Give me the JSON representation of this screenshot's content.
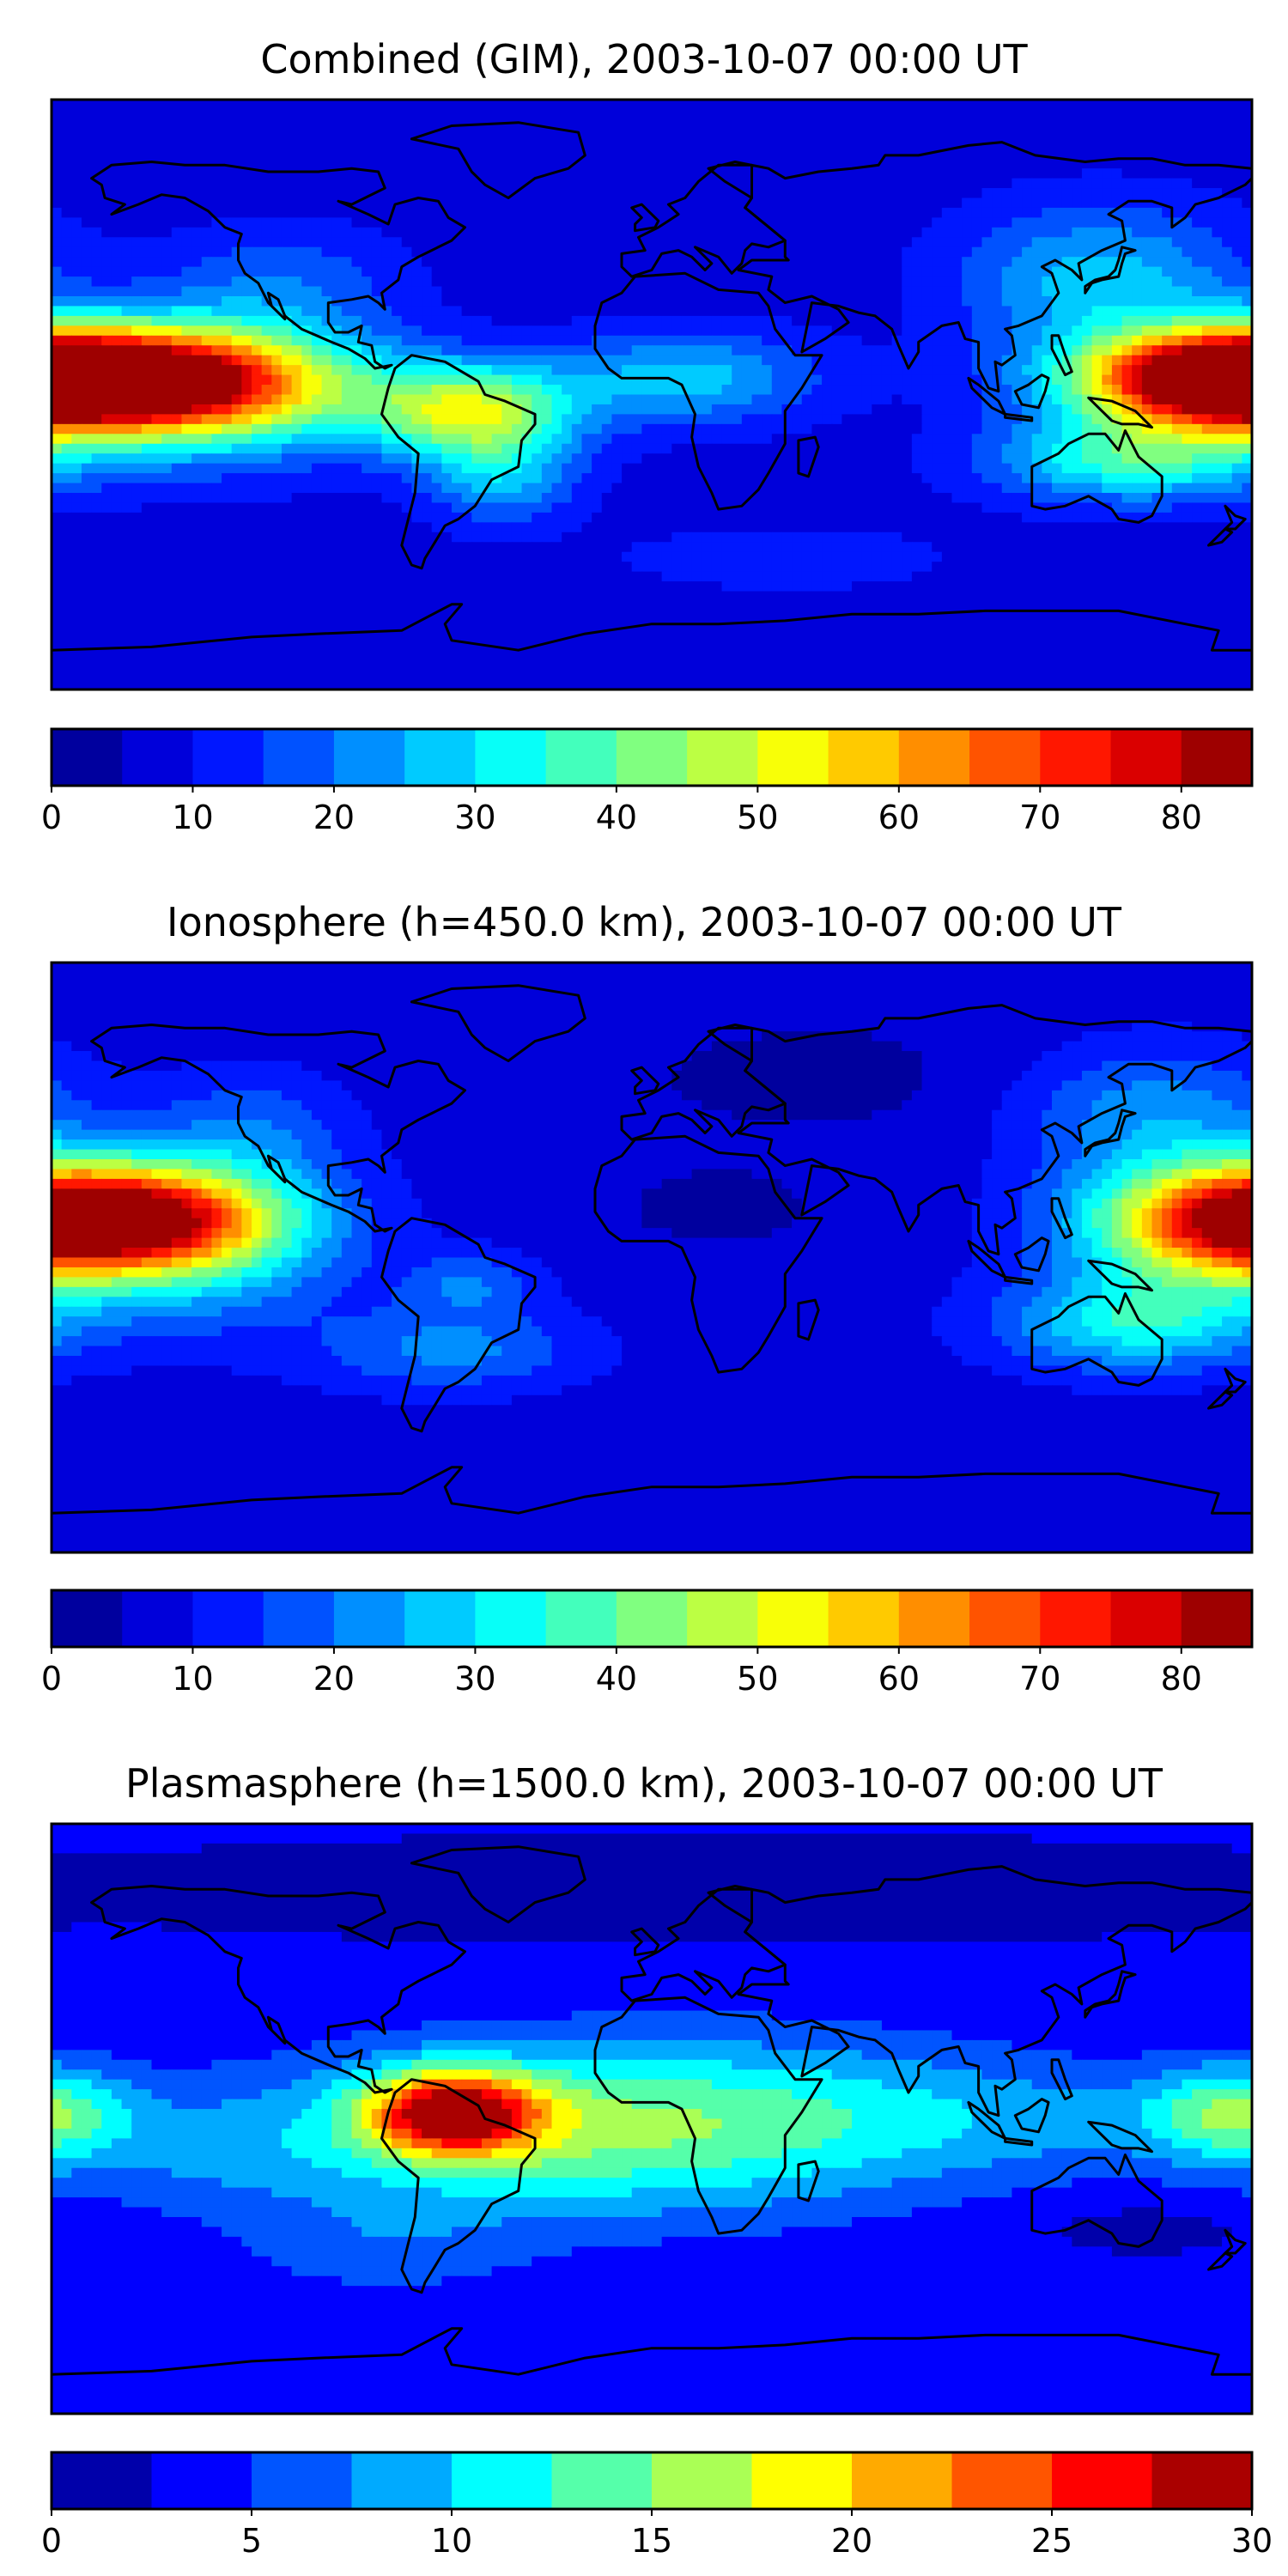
{
  "panels": [
    {
      "title": "Combined (GIM), 2003-10-07 00:00 UT",
      "colorbar": {
        "min": 0,
        "max": 85,
        "step": 5,
        "ticks": [
          0,
          10,
          20,
          30,
          40,
          50,
          60,
          70,
          80
        ]
      },
      "background_level": 7.5,
      "features": [
        {
          "lon": -162,
          "lat": 4,
          "sigma_lon": 42,
          "sigma_lat": 11,
          "value": 70
        },
        {
          "lon": -130,
          "lat": 2,
          "sigma_lon": 32,
          "sigma_lat": 16,
          "value": 25
        },
        {
          "lon": -55,
          "lat": -5,
          "sigma_lon": 22,
          "sigma_lat": 10,
          "value": 40
        },
        {
          "lon": -45,
          "lat": -25,
          "sigma_lon": 16,
          "sigma_lat": 10,
          "value": 18
        },
        {
          "lon": 10,
          "lat": 5,
          "sigma_lon": 28,
          "sigma_lat": 10,
          "value": 20
        },
        {
          "lon": 172,
          "lat": 5,
          "sigma_lon": 28,
          "sigma_lat": 10,
          "value": 55
        },
        {
          "lon": 145,
          "lat": -20,
          "sigma_lon": 30,
          "sigma_lat": 9,
          "value": 28
        },
        {
          "lon": 135,
          "lat": 35,
          "sigma_lon": 30,
          "sigma_lat": 16,
          "value": 20
        },
        {
          "lon": -110,
          "lat": 35,
          "sigma_lon": 25,
          "sigma_lat": 12,
          "value": 10
        },
        {
          "lon": 40,
          "lat": -50,
          "sigma_lon": 40,
          "sigma_lat": 8,
          "value": 5
        }
      ]
    },
    {
      "title": "Ionosphere  (h=450.0 km), 2003-10-07 00:00 UT",
      "colorbar": {
        "min": 0,
        "max": 85,
        "step": 5,
        "ticks": [
          0,
          10,
          20,
          30,
          40,
          50,
          60,
          70,
          80
        ]
      },
      "background_level": 7.5,
      "features": [
        {
          "lon": -160,
          "lat": 12,
          "sigma_lon": 32,
          "sigma_lat": 11,
          "value": 60
        },
        {
          "lon": -135,
          "lat": 5,
          "sigma_lon": 30,
          "sigma_lat": 18,
          "value": 20
        },
        {
          "lon": -55,
          "lat": -8,
          "sigma_lon": 14,
          "sigma_lat": 7,
          "value": 12
        },
        {
          "lon": -60,
          "lat": -28,
          "sigma_lon": 28,
          "sigma_lat": 9,
          "value": 14
        },
        {
          "lon": 20,
          "lat": 15,
          "sigma_lon": 25,
          "sigma_lat": 10,
          "value": -4
        },
        {
          "lon": 50,
          "lat": 55,
          "sigma_lon": 45,
          "sigma_lat": 14,
          "value": -4
        },
        {
          "lon": 170,
          "lat": 10,
          "sigma_lon": 30,
          "sigma_lat": 14,
          "value": 42
        },
        {
          "lon": 145,
          "lat": -20,
          "sigma_lon": 28,
          "sigma_lat": 10,
          "value": 25
        },
        {
          "lon": 150,
          "lat": 45,
          "sigma_lon": 28,
          "sigma_lat": 14,
          "value": 15
        },
        {
          "lon": -120,
          "lat": 40,
          "sigma_lon": 20,
          "sigma_lat": 12,
          "value": 10
        }
      ]
    },
    {
      "title": "Plasmasphere (h=1500.0 km), 2003-10-07 00:00 UT",
      "colorbar": {
        "min": 0,
        "max": 30,
        "step": 2.5,
        "ticks": [
          0,
          5,
          10,
          15,
          20,
          25,
          30
        ]
      },
      "background_level": 3,
      "features": [
        {
          "lon": -60,
          "lat": 2,
          "sigma_lon": 18,
          "sigma_lat": 9,
          "value": 22
        },
        {
          "lon": -40,
          "lat": -5,
          "sigma_lon": 60,
          "sigma_lat": 18,
          "value": 8
        },
        {
          "lon": 30,
          "lat": 0,
          "sigma_lon": 60,
          "sigma_lat": 18,
          "value": 7
        },
        {
          "lon": 175,
          "lat": 2,
          "sigma_lon": 18,
          "sigma_lat": 10,
          "value": 10
        },
        {
          "lon": 120,
          "lat": 0,
          "sigma_lon": 50,
          "sigma_lat": 12,
          "value": 3
        },
        {
          "lon": -140,
          "lat": -10,
          "sigma_lon": 40,
          "sigma_lat": 14,
          "value": 3
        },
        {
          "lon": -80,
          "lat": -40,
          "sigma_lon": 30,
          "sigma_lat": 10,
          "value": 3
        },
        {
          "lon": 20,
          "lat": 70,
          "sigma_lon": 120,
          "sigma_lat": 9,
          "value": -3
        },
        {
          "lon": 150,
          "lat": -32,
          "sigma_lon": 30,
          "sigma_lat": 7,
          "value": -1.5
        }
      ]
    }
  ],
  "colormap": "jet"
}
